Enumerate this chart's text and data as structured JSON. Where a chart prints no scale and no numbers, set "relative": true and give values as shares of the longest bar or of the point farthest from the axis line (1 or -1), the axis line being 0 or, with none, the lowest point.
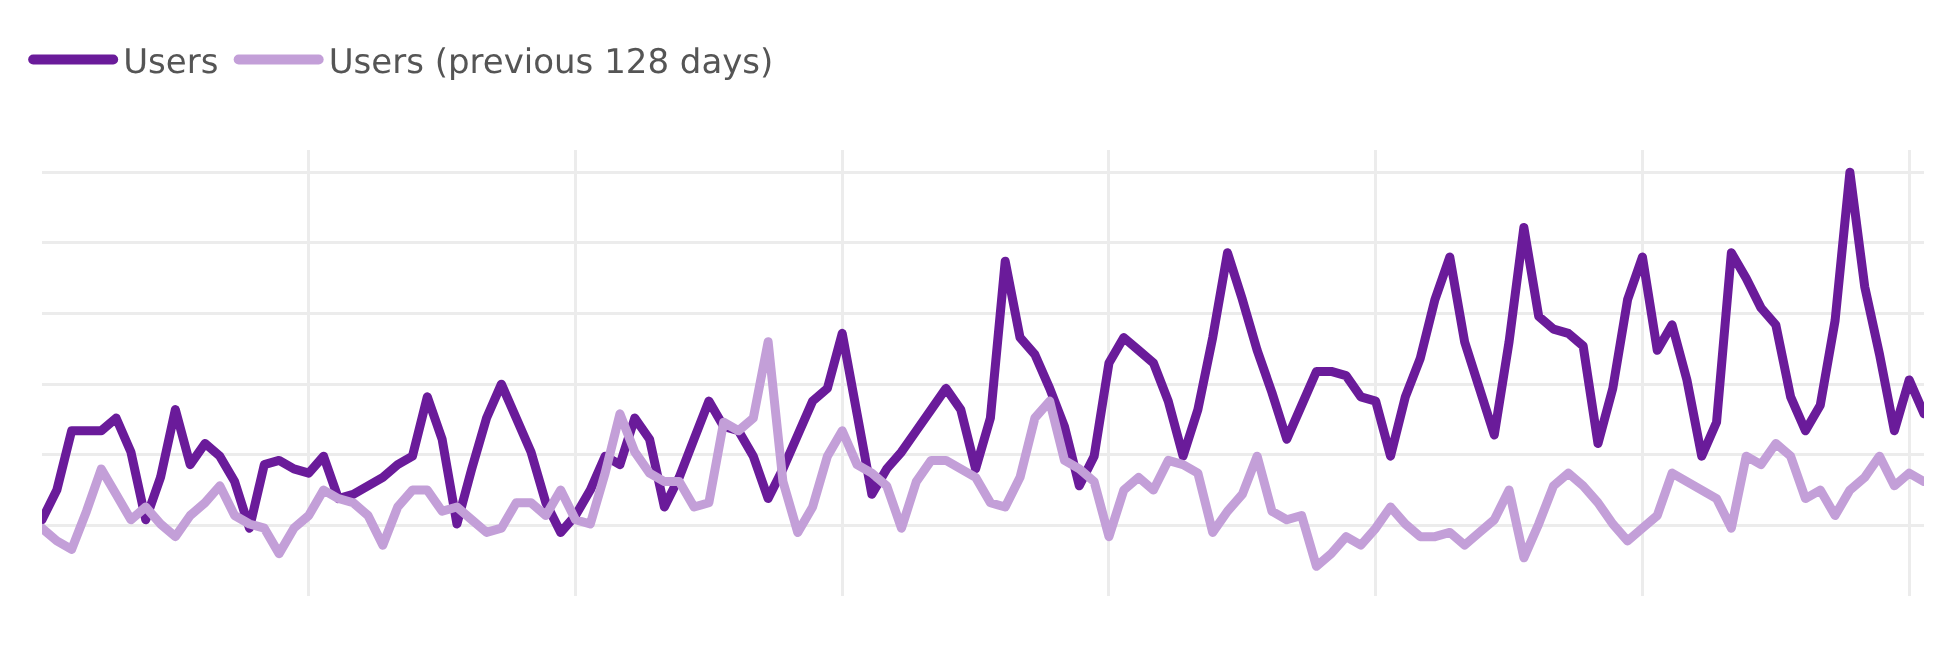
{
  "chart_data": {
    "type": "line",
    "relative": true,
    "grid": true,
    "legend": "top left",
    "categories": [
      null,
      null,
      null,
      null,
      null,
      null,
      null,
      null,
      null,
      null,
      null,
      null,
      null,
      null,
      null,
      null,
      null,
      null,
      null,
      null,
      null,
      null,
      null,
      null,
      null,
      null,
      null,
      null,
      null,
      null,
      null,
      null,
      null,
      null,
      null,
      null,
      null,
      null,
      null,
      null,
      null,
      null,
      null,
      null,
      null,
      null,
      null,
      null,
      null,
      null,
      null,
      null,
      null,
      null,
      null,
      null,
      null,
      null,
      null,
      null,
      null,
      null,
      null,
      null,
      null,
      null,
      null,
      null,
      null,
      null,
      null,
      null,
      null,
      null,
      null,
      null,
      null,
      null,
      null,
      null,
      null,
      null,
      null,
      null,
      null,
      null,
      null,
      null,
      null,
      null,
      null,
      null,
      null,
      null,
      null,
      null,
      null,
      null,
      null,
      null,
      null,
      null,
      null,
      null,
      null,
      null,
      null,
      null,
      null,
      null,
      null,
      null,
      null,
      null,
      null,
      null,
      null,
      null,
      null,
      null,
      null,
      null,
      null,
      null,
      null,
      null,
      null,
      null
    ],
    "series": [
      {
        "name": "Users",
        "color": "#6a1b9a",
        "values": [
          0.18,
          0.25,
          0.39,
          0.39,
          0.39,
          0.42,
          0.34,
          0.18,
          0.28,
          0.44,
          0.31,
          0.36,
          0.33,
          0.27,
          0.16,
          0.31,
          0.32,
          0.3,
          0.29,
          0.33,
          0.23,
          0.24,
          0.26,
          0.28,
          0.31,
          0.33,
          0.47,
          0.37,
          0.17,
          0.3,
          0.42,
          0.5,
          0.42,
          0.34,
          0.22,
          0.15,
          0.19,
          0.25,
          0.33,
          0.31,
          0.42,
          0.37,
          0.21,
          0.28,
          0.37,
          0.46,
          0.4,
          0.39,
          0.33,
          0.23,
          0.3,
          0.38,
          0.46,
          0.49,
          0.62,
          0.43,
          0.24,
          0.3,
          0.34,
          0.39,
          0.44,
          0.49,
          0.44,
          0.3,
          0.42,
          0.79,
          0.61,
          0.57,
          0.49,
          0.4,
          0.26,
          0.33,
          0.55,
          0.61,
          0.58,
          0.55,
          0.46,
          0.33,
          0.44,
          0.61,
          0.81,
          0.7,
          0.58,
          0.48,
          0.37,
          0.45,
          0.53,
          0.53,
          0.52,
          0.47,
          0.46,
          0.33,
          0.47,
          0.56,
          0.7,
          0.8,
          0.6,
          0.49,
          0.38,
          0.6,
          0.87,
          0.66,
          0.63,
          0.62,
          0.59,
          0.36,
          0.49,
          0.7,
          0.8,
          0.58,
          0.64,
          0.51,
          0.33,
          0.41,
          0.81,
          0.75,
          0.68,
          0.64,
          0.47,
          0.39,
          0.45,
          0.65,
          1,
          0.73,
          0.57,
          0.39,
          0.51,
          0.43
        ]
      },
      {
        "name": "Users (previous 128 days)",
        "color": "#c39fd8",
        "values": [
          0.16,
          0.13,
          0.11,
          0.2,
          0.3,
          0.24,
          0.18,
          0.21,
          0.17,
          0.14,
          0.19,
          0.22,
          0.26,
          0.19,
          0.17,
          0.16,
          0.1,
          0.16,
          0.19,
          0.25,
          0.23,
          0.22,
          0.19,
          0.12,
          0.21,
          0.25,
          0.25,
          0.2,
          0.21,
          0.18,
          0.15,
          0.16,
          0.22,
          0.22,
          0.19,
          0.25,
          0.18,
          0.17,
          0.29,
          0.43,
          0.34,
          0.29,
          0.27,
          0.27,
          0.21,
          0.22,
          0.41,
          0.39,
          0.42,
          0.6,
          0.27,
          0.15,
          0.21,
          0.33,
          0.39,
          0.31,
          0.29,
          0.26,
          0.16,
          0.27,
          0.32,
          0.32,
          0.3,
          0.28,
          0.22,
          0.21,
          0.28,
          0.42,
          0.46,
          0.32,
          0.3,
          0.27,
          0.14,
          0.25,
          0.28,
          0.25,
          0.32,
          0.31,
          0.29,
          0.15,
          0.2,
          0.24,
          0.33,
          0.2,
          0.18,
          0.19,
          0.07,
          0.1,
          0.14,
          0.12,
          0.16,
          0.21,
          0.17,
          0.14,
          0.14,
          0.15,
          0.12,
          0.15,
          0.18,
          0.25,
          0.09,
          0.17,
          0.26,
          0.29,
          0.26,
          0.22,
          0.17,
          0.13,
          0.16,
          0.19,
          0.29,
          0.27,
          0.25,
          0.23,
          0.16,
          0.33,
          0.31,
          0.36,
          0.33,
          0.23,
          0.25,
          0.19,
          0.25,
          0.28,
          0.33,
          0.26,
          0.29,
          0.27
        ]
      }
    ]
  }
}
